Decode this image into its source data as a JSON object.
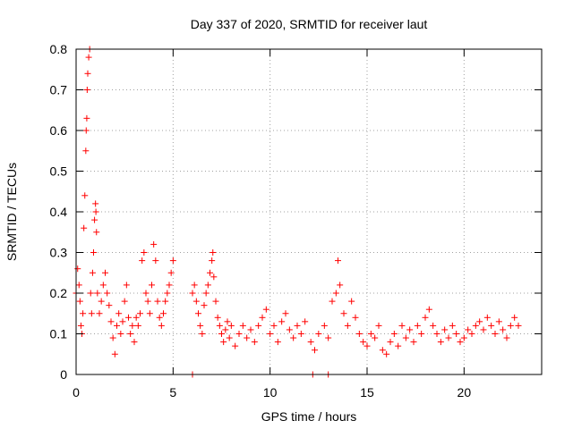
{
  "chart_data": {
    "type": "scatter",
    "title": "Day 337 of 2020, SRMTID for receiver laut",
    "xlabel": "GPS time / hours",
    "ylabel": "SRMTID / TECUs",
    "xlim": [
      0,
      24
    ],
    "ylim": [
      0,
      0.8
    ],
    "grid": true,
    "marker": "+",
    "color": "#ff0000",
    "x_ticks": [
      0,
      5,
      10,
      15,
      20
    ],
    "x_tick_labels": [
      "0",
      "5",
      "10",
      "15",
      "20"
    ],
    "y_ticks": [
      0,
      0.1,
      0.2,
      0.3,
      0.4,
      0.5,
      0.6,
      0.7,
      0.8
    ],
    "y_tick_labels": [
      "0",
      "0.1",
      "0.2",
      "0.3",
      "0.4",
      "0.5",
      "0.6",
      "0.7",
      "0.8"
    ],
    "series": [
      {
        "name": "SRMTID",
        "x": [
          0.0,
          0.08,
          0.15,
          0.2,
          0.25,
          0.3,
          0.35,
          0.4,
          0.45,
          0.5,
          0.52,
          0.55,
          0.57,
          0.6,
          0.65,
          0.7,
          0.75,
          0.8,
          0.85,
          0.9,
          0.95,
          1.0,
          1.02,
          1.05,
          1.1,
          1.2,
          1.3,
          1.4,
          1.5,
          1.6,
          1.7,
          1.8,
          1.9,
          2.0,
          2.1,
          2.2,
          2.3,
          2.4,
          2.5,
          2.6,
          2.7,
          2.8,
          2.9,
          3.0,
          3.1,
          3.2,
          3.3,
          3.4,
          3.5,
          3.6,
          3.7,
          3.8,
          3.9,
          4.0,
          4.1,
          4.2,
          4.3,
          4.4,
          4.5,
          4.6,
          4.7,
          4.8,
          4.9,
          5.0,
          6.0,
          6.1,
          6.2,
          6.3,
          6.4,
          6.5,
          6.6,
          6.7,
          6.8,
          6.9,
          7.0,
          7.05,
          7.1,
          7.2,
          7.3,
          7.4,
          7.5,
          7.6,
          7.7,
          7.8,
          7.9,
          8.0,
          8.2,
          8.4,
          8.6,
          8.8,
          9.0,
          9.2,
          9.4,
          9.6,
          9.8,
          10.0,
          10.2,
          10.4,
          10.6,
          10.8,
          11.0,
          11.2,
          11.4,
          11.6,
          11.8,
          12.1,
          12.3,
          12.5,
          12.8,
          13.0,
          13.2,
          13.4,
          13.5,
          13.6,
          13.8,
          14.0,
          14.2,
          14.4,
          14.6,
          14.8,
          15.0,
          15.2,
          15.4,
          15.6,
          15.8,
          16.0,
          16.2,
          16.4,
          16.6,
          16.8,
          17.0,
          17.2,
          17.4,
          17.6,
          17.8,
          18.0,
          18.2,
          18.4,
          18.6,
          18.8,
          19.0,
          19.2,
          19.4,
          19.6,
          19.8,
          20.0,
          20.2,
          20.4,
          20.6,
          20.8,
          21.0,
          21.2,
          21.4,
          21.6,
          21.8,
          22.0,
          22.2,
          22.4,
          22.6,
          22.8,
          6.0,
          12.2,
          13.0
        ],
        "y": [
          0.2,
          0.26,
          0.22,
          0.18,
          0.12,
          0.1,
          0.15,
          0.36,
          0.44,
          0.55,
          0.6,
          0.63,
          0.7,
          0.74,
          0.78,
          0.8,
          0.2,
          0.15,
          0.25,
          0.3,
          0.38,
          0.42,
          0.4,
          0.35,
          0.2,
          0.15,
          0.18,
          0.22,
          0.25,
          0.2,
          0.17,
          0.13,
          0.09,
          0.05,
          0.12,
          0.15,
          0.1,
          0.13,
          0.18,
          0.22,
          0.14,
          0.1,
          0.12,
          0.08,
          0.14,
          0.12,
          0.15,
          0.28,
          0.3,
          0.2,
          0.18,
          0.15,
          0.22,
          0.32,
          0.28,
          0.18,
          0.14,
          0.12,
          0.15,
          0.18,
          0.2,
          0.22,
          0.25,
          0.28,
          0.2,
          0.22,
          0.18,
          0.15,
          0.12,
          0.1,
          0.17,
          0.2,
          0.22,
          0.25,
          0.28,
          0.3,
          0.24,
          0.18,
          0.14,
          0.12,
          0.1,
          0.08,
          0.11,
          0.13,
          0.09,
          0.12,
          0.07,
          0.1,
          0.12,
          0.09,
          0.11,
          0.08,
          0.12,
          0.14,
          0.16,
          0.1,
          0.12,
          0.08,
          0.13,
          0.15,
          0.11,
          0.09,
          0.12,
          0.1,
          0.13,
          0.08,
          0.06,
          0.1,
          0.12,
          0.09,
          0.18,
          0.2,
          0.28,
          0.22,
          0.15,
          0.12,
          0.18,
          0.14,
          0.1,
          0.08,
          0.07,
          0.1,
          0.09,
          0.12,
          0.06,
          0.05,
          0.08,
          0.1,
          0.07,
          0.12,
          0.09,
          0.11,
          0.08,
          0.12,
          0.1,
          0.14,
          0.16,
          0.12,
          0.1,
          0.08,
          0.11,
          0.09,
          0.12,
          0.1,
          0.08,
          0.09,
          0.11,
          0.1,
          0.12,
          0.13,
          0.11,
          0.14,
          0.12,
          0.1,
          0.13,
          0.11,
          0.09,
          0.12,
          0.14,
          0.12,
          0.0,
          0.0,
          0.0
        ]
      }
    ]
  }
}
